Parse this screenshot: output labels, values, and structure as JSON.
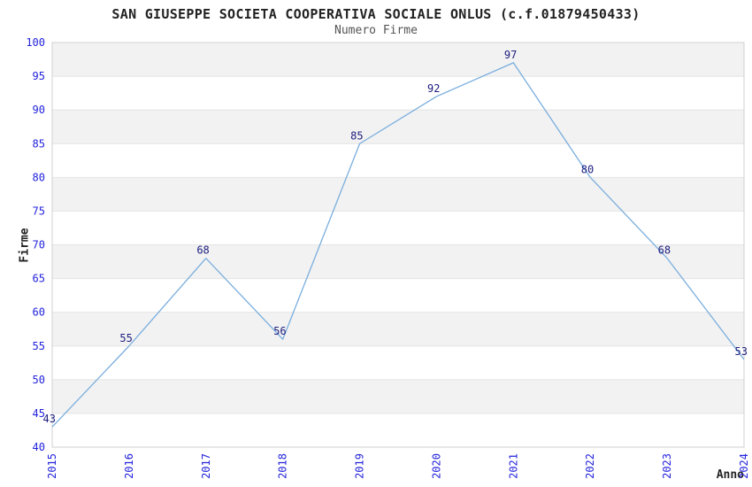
{
  "chart": {
    "title": "SAN GIUSEPPE SOCIETA COOPERATIVA SOCIALE ONLUS (c.f.01879450433)",
    "subtitle": "Numero Firme",
    "ylabel": "Firme",
    "xlabel": "Anno"
  },
  "chart_data": {
    "type": "line",
    "title": "SAN GIUSEPPE SOCIETA COOPERATIVA SOCIALE ONLUS (c.f.01879450433)",
    "subtitle": "Numero Firme",
    "xlabel": "Anno",
    "ylabel": "Firme",
    "categories": [
      "2015",
      "2016",
      "2017",
      "2018",
      "2019",
      "2020",
      "2021",
      "2022",
      "2023",
      "2024"
    ],
    "values": [
      43,
      55,
      68,
      56,
      85,
      92,
      97,
      80,
      68,
      53
    ],
    "ylim": [
      40,
      100
    ],
    "y_ticks": [
      40,
      45,
      50,
      55,
      60,
      65,
      70,
      75,
      80,
      85,
      90,
      95,
      100
    ],
    "grid": "alternating-horizontal-bands",
    "legend": "none",
    "point_labels_visible": true,
    "colors": {
      "line": "#7aaede",
      "point_label": "#202080",
      "tick_label": "#2323dd",
      "band": "#f2f2f2",
      "band_edge": "#e4e4e4",
      "plot_border": "#d0d0d0",
      "title": "#222222",
      "subtitle": "#555555",
      "axis_title": "#222222",
      "background": "#ffffff"
    }
  }
}
